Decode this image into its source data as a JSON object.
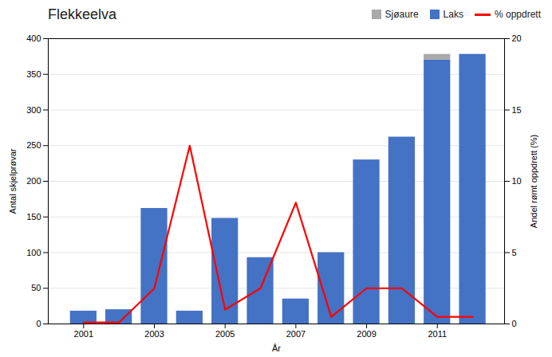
{
  "chart_data": {
    "type": "bar",
    "title": "Flekkeelva",
    "x": [
      2001,
      2002,
      2003,
      2004,
      2005,
      2006,
      2007,
      2008,
      2009,
      2010,
      2011,
      2012
    ],
    "xlabel": "År",
    "ylabel": "Antal skjelprøvar",
    "y2label": "Andel rømt oppdrett (%)",
    "xlim": [
      2000.0,
      2012.9
    ],
    "xticks": [
      2001,
      2003,
      2005,
      2007,
      2009,
      2011
    ],
    "ylim": [
      0,
      400
    ],
    "yticks": [
      0,
      50,
      100,
      150,
      200,
      250,
      300,
      350,
      400
    ],
    "y2lim": [
      0,
      20
    ],
    "y2ticks": [
      0,
      5,
      10,
      15,
      20
    ],
    "stacked": true,
    "grid": true,
    "legend": "upper right",
    "series": [
      {
        "name": "Laks",
        "type": "bar",
        "color": "#4472C4",
        "values": [
          18,
          20,
          162,
          18,
          148,
          93,
          35,
          100,
          230,
          262,
          370,
          378
        ]
      },
      {
        "name": "Sjøaure",
        "type": "bar",
        "color": "#A9A9A9",
        "values": [
          0,
          0,
          0,
          0,
          0,
          0,
          0,
          0,
          0,
          0,
          8,
          0
        ]
      },
      {
        "name": "% oppdrett",
        "type": "line",
        "color": "#FF0000",
        "axis": "y2",
        "values": [
          0.1,
          0.1,
          2.5,
          12.5,
          1.0,
          2.5,
          8.5,
          0.5,
          2.5,
          2.5,
          0.5,
          0.5
        ]
      }
    ]
  }
}
